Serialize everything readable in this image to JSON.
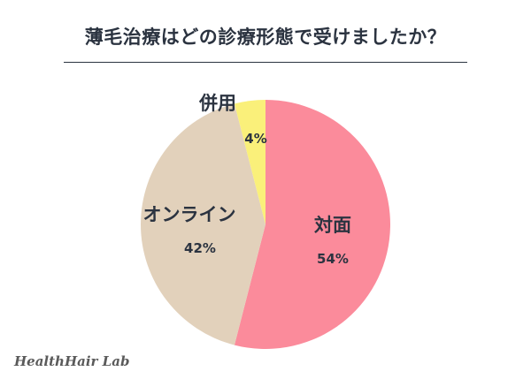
{
  "title": "薄毛治療はどの診療形態で受けましたか？",
  "brand": "HealthHair Lab",
  "chart_data": {
    "type": "pie",
    "title": "薄毛治療はどの診療形態で受けましたか？",
    "slices": [
      {
        "label": "対面",
        "value": 54,
        "value_label": "54%",
        "color": "#fb8b9b"
      },
      {
        "label": "オンライン",
        "value": 42,
        "value_label": "42%",
        "color": "#e2d1bb"
      },
      {
        "label": "併用",
        "value": 4,
        "value_label": "4%",
        "color": "#faf07a"
      }
    ],
    "start": "12 o'clock",
    "direction": "clockwise",
    "legend": "none"
  }
}
